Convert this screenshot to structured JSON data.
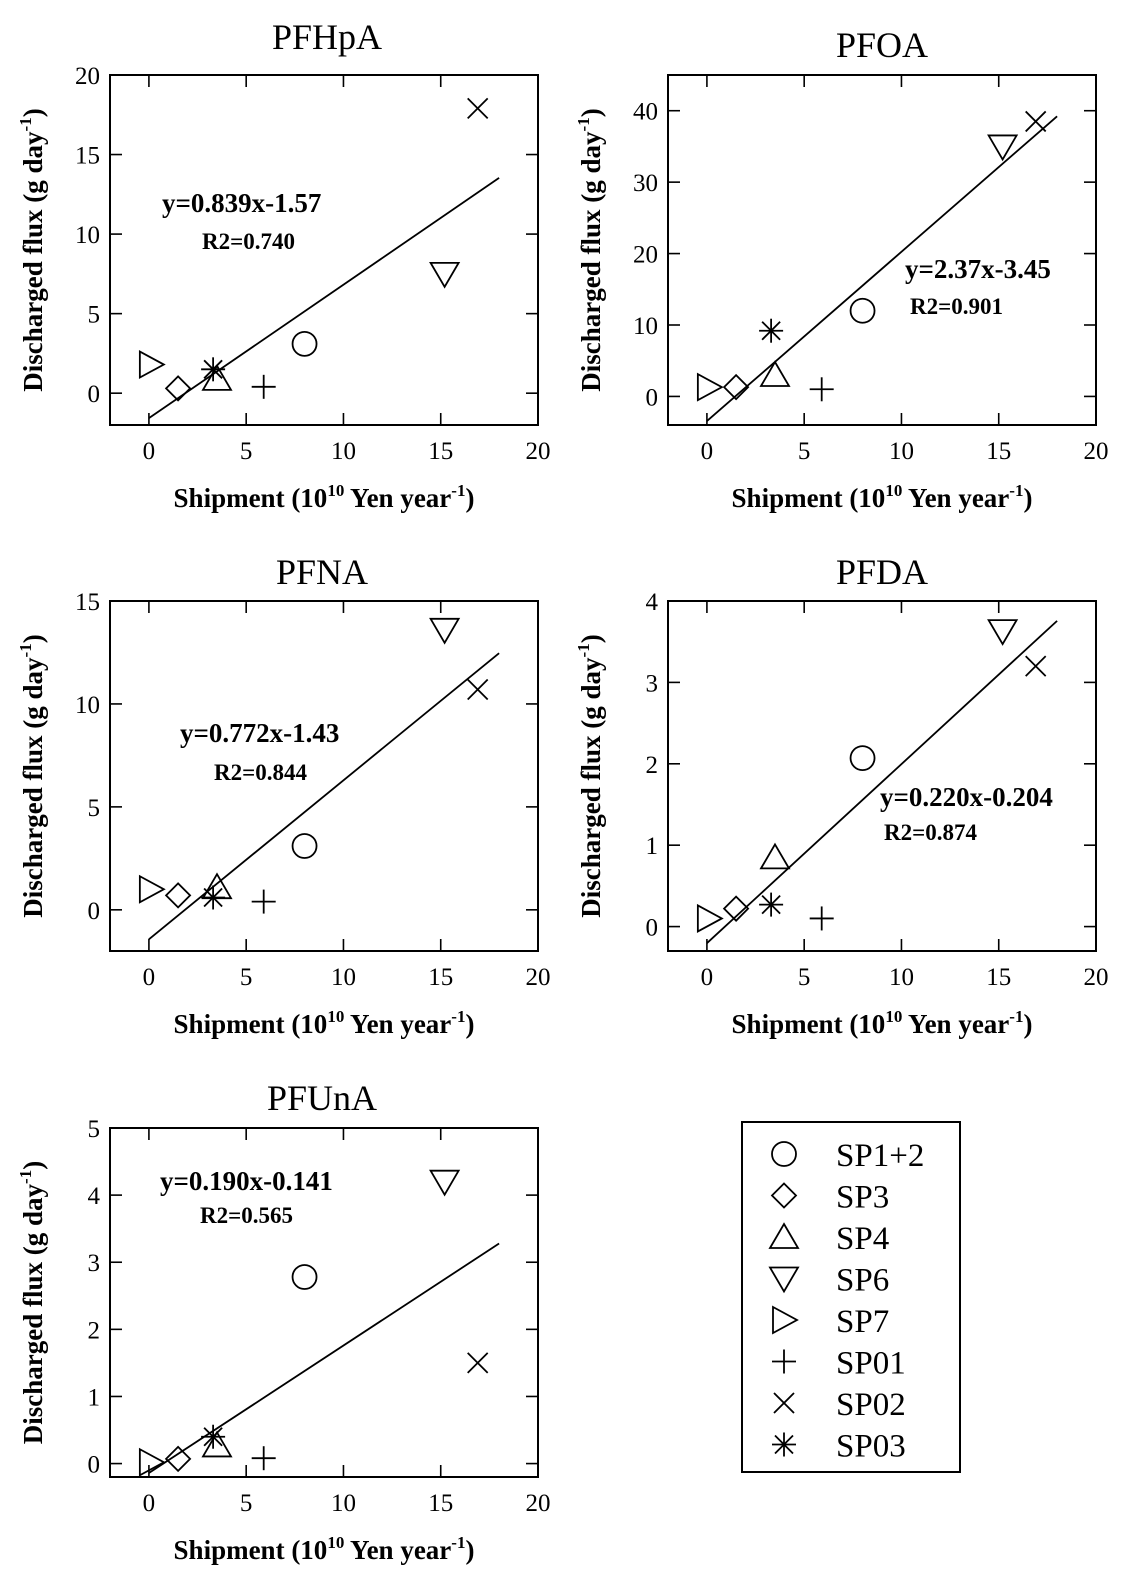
{
  "chart_data": [
    {
      "type": "scatter",
      "title": "PFHpA",
      "xlabel": {
        "prefix": "Shipment (10",
        "sup": "10",
        "mid": " Yen year",
        "sup2": "-1",
        "suffix": ")"
      },
      "ylabel": {
        "prefix": "Discharged flux (g day",
        "sup": "-1",
        "suffix": ")"
      },
      "xlim": [
        -2,
        20
      ],
      "ylim": [
        -2,
        20
      ],
      "xticks": [
        0,
        5,
        10,
        15,
        20
      ],
      "yticks": [
        0,
        5,
        10,
        15,
        20
      ],
      "equation": "y=0.839x-1.57",
      "r2": "R2=0.740",
      "fit": {
        "slope": 0.839,
        "intercept": -1.57,
        "x0": 0,
        "x1": 18
      },
      "points": [
        {
          "series": "SP1+2",
          "x": 8.0,
          "y": 3.1
        },
        {
          "series": "SP3",
          "x": 1.5,
          "y": 0.3
        },
        {
          "series": "SP4",
          "x": 3.5,
          "y": 0.9
        },
        {
          "series": "SP6",
          "x": 15.2,
          "y": 7.5
        },
        {
          "series": "SP7",
          "x": 0.1,
          "y": 1.8
        },
        {
          "series": "SP01",
          "x": 5.9,
          "y": 0.4
        },
        {
          "series": "SP02",
          "x": 16.9,
          "y": 17.9
        },
        {
          "series": "SP03",
          "x": 3.3,
          "y": 1.5
        }
      ]
    },
    {
      "type": "scatter",
      "title": "PFOA",
      "xlabel": {
        "prefix": "Shipment (10",
        "sup": "10",
        "mid": " Yen year",
        "sup2": "-1",
        "suffix": ")"
      },
      "ylabel": {
        "prefix": "Discharged flux (g day",
        "sup": "-1",
        "suffix": ")"
      },
      "xlim": [
        -2,
        20
      ],
      "ylim": [
        -4,
        45
      ],
      "xticks": [
        0,
        5,
        10,
        15,
        20
      ],
      "yticks": [
        0,
        10,
        20,
        30,
        40
      ],
      "equation": "y=2.37x-3.45",
      "r2": "R2=0.901",
      "fit": {
        "slope": 2.37,
        "intercept": -3.45,
        "x0": 0,
        "x1": 18
      },
      "points": [
        {
          "series": "SP1+2",
          "x": 8.0,
          "y": 12
        },
        {
          "series": "SP3",
          "x": 1.5,
          "y": 1.3
        },
        {
          "series": "SP4",
          "x": 3.5,
          "y": 3.0
        },
        {
          "series": "SP6",
          "x": 15.2,
          "y": 35
        },
        {
          "series": "SP7",
          "x": 0.1,
          "y": 1.3
        },
        {
          "series": "SP01",
          "x": 5.9,
          "y": 1.0
        },
        {
          "series": "SP02",
          "x": 16.9,
          "y": 38.5
        },
        {
          "series": "SP03",
          "x": 3.3,
          "y": 9.2
        }
      ]
    },
    {
      "type": "scatter",
      "title": "PFNA",
      "xlabel": {
        "prefix": "Shipment (10",
        "sup": "10",
        "mid": " Yen year",
        "sup2": "-1",
        "suffix": ")"
      },
      "ylabel": {
        "prefix": "Discharged flux (g day",
        "sup": "-1",
        "suffix": ")"
      },
      "xlim": [
        -2,
        20
      ],
      "ylim": [
        -2,
        15
      ],
      "xticks": [
        0,
        5,
        10,
        15,
        20
      ],
      "yticks": [
        0,
        5,
        10,
        15
      ],
      "equation": "y=0.772x-1.43",
      "r2": "R2=0.844",
      "fit": {
        "slope": 0.772,
        "intercept": -1.43,
        "x0": 0,
        "x1": 18
      },
      "points": [
        {
          "series": "SP1+2",
          "x": 8.0,
          "y": 3.1
        },
        {
          "series": "SP3",
          "x": 1.5,
          "y": 0.7
        },
        {
          "series": "SP4",
          "x": 3.5,
          "y": 1.1
        },
        {
          "series": "SP6",
          "x": 15.2,
          "y": 13.6
        },
        {
          "series": "SP7",
          "x": 0.1,
          "y": 1.0
        },
        {
          "series": "SP01",
          "x": 5.9,
          "y": 0.4
        },
        {
          "series": "SP02",
          "x": 16.9,
          "y": 10.7
        },
        {
          "series": "SP03",
          "x": 3.3,
          "y": 0.6
        }
      ]
    },
    {
      "type": "scatter",
      "title": "PFDA",
      "xlabel": {
        "prefix": "Shipment (10",
        "sup": "10",
        "mid": " Yen year",
        "sup2": "-1",
        "suffix": ")"
      },
      "ylabel": {
        "prefix": "Discharged flux (g day",
        "sup": "-1",
        "suffix": ")"
      },
      "xlim": [
        -2,
        20
      ],
      "ylim": [
        -0.3,
        4
      ],
      "xticks": [
        0,
        5,
        10,
        15,
        20
      ],
      "yticks": [
        0,
        1,
        2,
        3,
        4
      ],
      "equation": "y=0.220x-0.204",
      "r2": "R2=0.874",
      "fit": {
        "slope": 0.22,
        "intercept": -0.204,
        "x0": 0,
        "x1": 18
      },
      "points": [
        {
          "series": "SP1+2",
          "x": 8.0,
          "y": 2.07
        },
        {
          "series": "SP3",
          "x": 1.5,
          "y": 0.22
        },
        {
          "series": "SP4",
          "x": 3.5,
          "y": 0.85
        },
        {
          "series": "SP6",
          "x": 15.2,
          "y": 3.63
        },
        {
          "series": "SP7",
          "x": 0.1,
          "y": 0.1
        },
        {
          "series": "SP01",
          "x": 5.9,
          "y": 0.1
        },
        {
          "series": "SP02",
          "x": 16.9,
          "y": 3.2
        },
        {
          "series": "SP03",
          "x": 3.3,
          "y": 0.27
        }
      ]
    },
    {
      "type": "scatter",
      "title": "PFUnA",
      "xlabel": {
        "prefix": "Shipment (10",
        "sup": "10",
        "mid": " Yen year",
        "sup2": "-1",
        "suffix": ")"
      },
      "ylabel": {
        "prefix": "Discharged flux (g day",
        "sup": "-1",
        "suffix": ")"
      },
      "xlim": [
        -2,
        20
      ],
      "ylim": [
        -0.2,
        5
      ],
      "xticks": [
        0,
        5,
        10,
        15,
        20
      ],
      "yticks": [
        0,
        1,
        2,
        3,
        4,
        5
      ],
      "equation": "y=0.190x-0.141",
      "r2": "R2=0.565",
      "fit": {
        "slope": 0.19,
        "intercept": -0.141,
        "x0": 0,
        "x1": 18
      },
      "points": [
        {
          "series": "SP1+2",
          "x": 8.0,
          "y": 2.78
        },
        {
          "series": "SP3",
          "x": 1.5,
          "y": 0.07
        },
        {
          "series": "SP4",
          "x": 3.5,
          "y": 0.27
        },
        {
          "series": "SP6",
          "x": 15.2,
          "y": 4.2
        },
        {
          "series": "SP7",
          "x": 0.1,
          "y": 0.02
        },
        {
          "series": "SP01",
          "x": 5.9,
          "y": 0.08
        },
        {
          "series": "SP02",
          "x": 16.9,
          "y": 1.5
        },
        {
          "series": "SP03",
          "x": 3.3,
          "y": 0.4
        }
      ]
    }
  ],
  "legend": {
    "entries": [
      {
        "series": "SP1+2",
        "marker": "circle",
        "label": "SP1+2"
      },
      {
        "series": "SP3",
        "marker": "diamond",
        "label": "SP3"
      },
      {
        "series": "SP4",
        "marker": "triangle-up",
        "label": "SP4"
      },
      {
        "series": "SP6",
        "marker": "triangle-down",
        "label": "SP6"
      },
      {
        "series": "SP7",
        "marker": "triangle-right",
        "label": "SP7"
      },
      {
        "series": "SP01",
        "marker": "plus",
        "label": "SP01"
      },
      {
        "series": "SP02",
        "marker": "cross",
        "label": "SP02"
      },
      {
        "series": "SP03",
        "marker": "asterisk",
        "label": "SP03"
      }
    ]
  }
}
